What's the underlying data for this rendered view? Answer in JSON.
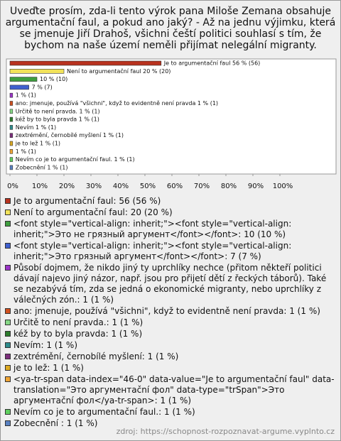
{
  "chart_data": {
    "type": "bar",
    "orientation": "horizontal",
    "title": "Uveďte prosím, zda-li tento výrok pana Miloše Zemana obsahuje argumentační faul, a pokud ano jaký? - Až na jednu výjimku, která se jmenuje Jiří Drahoš, všichni čeští politici souhlasí s tím, že bychom na naše území neměli přijímat nelegální migranty.",
    "categories": [
      "Je to argumentační faul: 56 (56 %)",
      "Není to argumentační faul: 20 (20 %)",
      "<font style=\"vertical-align: inherit;\"><font style=\"vertical-align: inherit;\">Это не грязный аргумент</font></font>: 10 (10 %)",
      "<font style=\"vertical-align: inherit;\"><font style=\"vertical-align: inherit;\">Это грязный аргумент</font></font>: 7 (7 %)",
      "Působí dojmem, že nikdo jiný ty uprchlíky nechce (přitom někteří politici dávají najevo jiný názor, např. jsou pro přijetí dětí z řeckých táborů). Také se nezabývá tím, zda se jedná o ekonomické migranty, nebo uprchlíky z válečných zón.: 1 (1 %)",
      "ano: jmenuje, používá \"všichni\", když to evidentně není pravda: 1 (1 %)",
      "Určitě to není pravda.: 1 (1 %)",
      "kéž by to byla pravda: 1 (1 %)",
      "Nevím: 1 (1 %)",
      "zextrémění, černobílé myšlení: 1 (1 %)",
      "je to lež: 1 (1 %)",
      "<ya-tr-span data-index=\"46-0\" data-value=\"Je to argumentační faul\" data-translation=\"Это аргументační фол\" data-type=\"trSpan\">Это аргументační фол</ya-tr-span>: 1 (1 %)",
      "Nevím co je to argumentační faul.: 1 (1 %)",
      "Zobecnění : 1 (1 %)"
    ],
    "values": [
      56,
      20,
      10,
      7,
      1,
      1,
      1,
      1,
      1,
      1,
      1,
      1,
      1,
      1
    ],
    "value_labels": [
      "Je to argumentační faul 56 % (56)",
      "Není to argumentační faul 20 % (20)",
      "10 % (10)",
      "7 % (7)",
      "1 % (1)",
      "ano: jmenuje, používá \"všichni\", když to evidentně není pravda 1 % (1)",
      "Určitě to není pravda. 1 % (1)",
      "kéž by to byla pravda 1 % (1)",
      "Nevím 1 % (1)",
      "zextrémění, černobílé myšlení 1 % (1)",
      "je to lež 1 % (1)",
      "1 % (1)",
      "Nevím co je to argumentační faul. 1 % (1)",
      "Zobecnění 1 % (1)"
    ],
    "colors": [
      "#b8321e",
      "#f2e35a",
      "#3f9e3f",
      "#3f60cf",
      "#9c35c9",
      "#d1501f",
      "#86d886",
      "#2d7d2d",
      "#2e8c8c",
      "#7c2e7c",
      "#ddaa22",
      "#f0a535",
      "#5fd05f",
      "#5a82c2"
    ],
    "xlim": [
      0,
      100
    ],
    "xticks": [
      {
        "value": 0,
        "label": "0%"
      },
      {
        "value": 10,
        "label": "10%"
      },
      {
        "value": 20,
        "label": "20%"
      },
      {
        "value": 30,
        "label": "30%"
      },
      {
        "value": 40,
        "label": "40%"
      },
      {
        "value": 50,
        "label": "50%"
      },
      {
        "value": 60,
        "label": "60%"
      },
      {
        "value": 70,
        "label": "70%"
      },
      {
        "value": 80,
        "label": "80%"
      },
      {
        "value": 90,
        "label": "90%"
      },
      {
        "value": 100,
        "label": "100%"
      }
    ],
    "source": "zdroj: https://schopnost-rozpoznavat-argume.vyplnto.cz"
  }
}
